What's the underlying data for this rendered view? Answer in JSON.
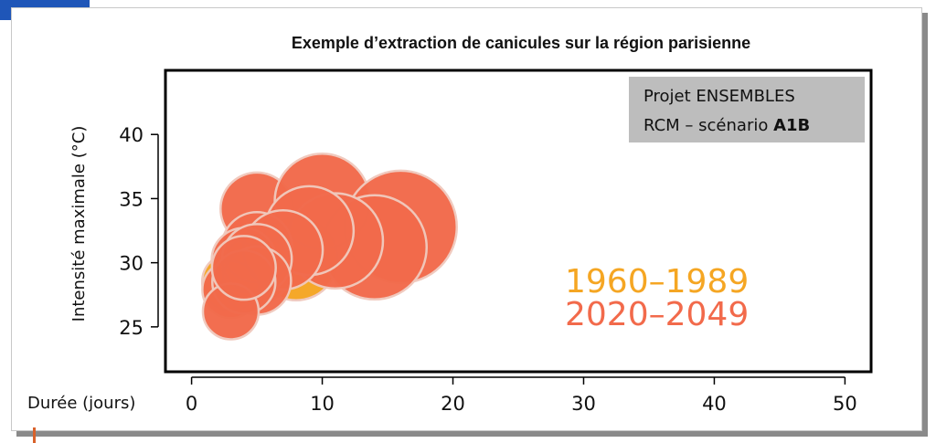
{
  "chart_data": {
    "type": "scatter",
    "title": "Exemple d’extraction de canicules sur la région parisienne",
    "xlabel": "Durée (jours)",
    "ylabel": "Intensité maximale (°C)",
    "xlim": [
      -2,
      52
    ],
    "ylim": [
      21.5,
      45
    ],
    "xticks": [
      0,
      10,
      20,
      30,
      40,
      50
    ],
    "yticks": [
      25,
      30,
      35,
      40
    ],
    "grid": false,
    "legend_position": "bottom-right",
    "annotation": {
      "line1": "Projet ENSEMBLES",
      "line2_prefix": "RCM – scénario ",
      "line2_bold": "A1B"
    },
    "series": [
      {
        "name": "1960–1989",
        "color": "#f5a623",
        "points": [
          {
            "x": 8,
            "y": 30.3
          },
          {
            "x": 3,
            "y": 28.5
          },
          {
            "x": 5,
            "y": 29.5
          }
        ]
      },
      {
        "name": "2020–2049",
        "color": "#f26a4b",
        "points": [
          {
            "x": 5,
            "y": 34.2
          },
          {
            "x": 10,
            "y": 34.8
          },
          {
            "x": 16,
            "y": 32.8
          },
          {
            "x": 14,
            "y": 31.2
          },
          {
            "x": 11,
            "y": 31.7
          },
          {
            "x": 9,
            "y": 32.5
          },
          {
            "x": 5,
            "y": 31.2
          },
          {
            "x": 7,
            "y": 31.0
          },
          {
            "x": 4,
            "y": 30.2
          },
          {
            "x": 5,
            "y": 30.3
          },
          {
            "x": 5,
            "y": 28.6
          },
          {
            "x": 3,
            "y": 27.9
          },
          {
            "x": 4,
            "y": 28.5
          },
          {
            "x": 3,
            "y": 26.2
          },
          {
            "x": 4,
            "y": 29.6
          }
        ]
      }
    ]
  }
}
